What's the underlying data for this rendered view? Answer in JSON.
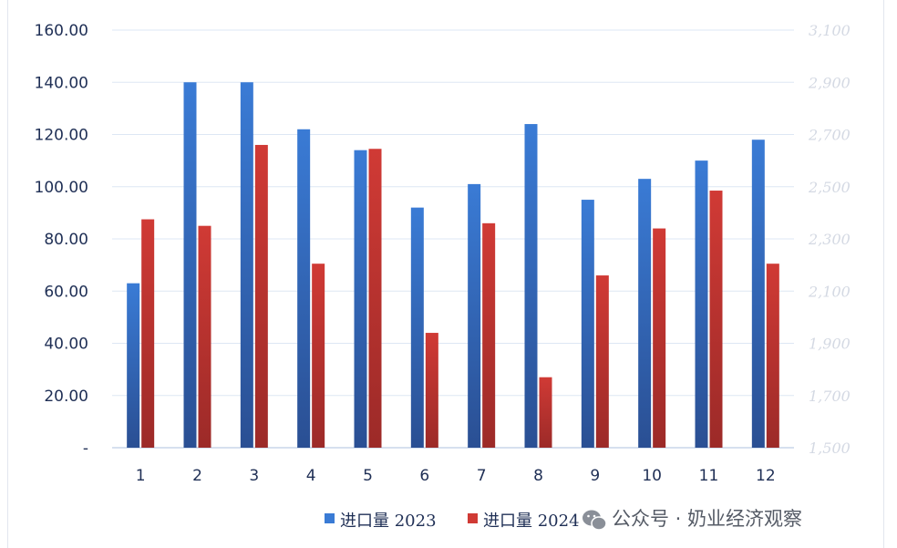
{
  "chart_data": {
    "type": "bar",
    "categories": [
      "1",
      "2",
      "3",
      "4",
      "5",
      "6",
      "7",
      "8",
      "9",
      "10",
      "11",
      "12"
    ],
    "series": [
      {
        "name": "进口量 2023",
        "color": "#3a7bd5",
        "values": [
          63,
          140,
          140,
          122,
          114,
          92,
          101,
          124,
          95,
          103,
          110,
          118
        ]
      },
      {
        "name": "进口量 2024",
        "color": "#d03a35",
        "values": [
          87.5,
          85,
          116,
          70.5,
          114.5,
          44,
          86,
          27,
          66,
          84,
          98.5,
          70.5
        ]
      }
    ],
    "ylim": [
      0,
      160
    ],
    "yticks": [
      "-",
      "20.00",
      "40.00",
      "60.00",
      "80.00",
      "100.00",
      "120.00",
      "140.00",
      "160.00"
    ],
    "y2lim": [
      1500,
      3100
    ],
    "y2ticks": [
      "1,500",
      "1,700",
      "1,900",
      "2,100",
      "2,300",
      "2,500",
      "2,700",
      "2,900",
      "3,100"
    ],
    "grid": true,
    "legend_position": "bottom-center"
  },
  "watermark": {
    "text": "公众号 · 奶业经济观察",
    "icon": "wechat-icon"
  }
}
